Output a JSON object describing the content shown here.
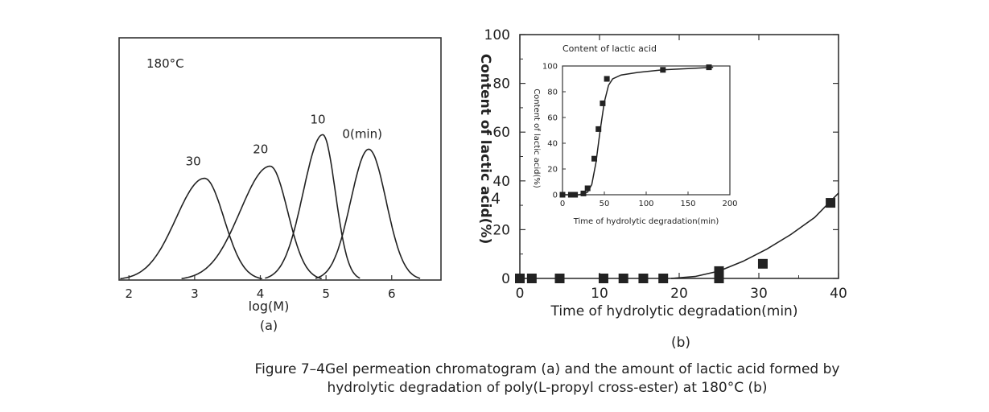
{
  "chart_data": [
    {
      "type": "line",
      "panel": "(a)",
      "annotation": "180°C",
      "xlabel": "log(M)",
      "ylabel": "",
      "xlim": [
        1.85,
        6.75
      ],
      "ylim": [
        0,
        1.0
      ],
      "x_ticks": [
        2,
        3,
        4,
        5,
        6
      ],
      "grid": false,
      "series": [
        {
          "name": "30",
          "peak_x": 3.15,
          "peak_y": 0.42,
          "left_width": 0.95,
          "right_width": 0.65
        },
        {
          "name": "20",
          "peak_x": 4.15,
          "peak_y": 0.47,
          "left_width": 1.0,
          "right_width": 0.58
        },
        {
          "name": "10",
          "peak_x": 4.95,
          "peak_y": 0.6,
          "left_width": 0.65,
          "right_width": 0.42
        },
        {
          "name": "0(min)",
          "peak_x": 5.65,
          "peak_y": 0.54,
          "left_width": 0.6,
          "right_width": 0.58
        }
      ]
    },
    {
      "type": "scatter",
      "panel": "(b)",
      "xlabel": "Time of hydrolytic degradation(min)",
      "ylabel": "Content of lactic acid(%)",
      "xlim": [
        0,
        40
      ],
      "ylim": [
        0,
        100
      ],
      "x_ticks": [
        0,
        10,
        20,
        30,
        40
      ],
      "y_ticks": [
        0,
        20,
        40,
        60,
        80,
        100
      ],
      "grid": false,
      "points": {
        "x": [
          0,
          1.5,
          5,
          10.5,
          13,
          15.5,
          18,
          25,
          25,
          30.5,
          39
        ],
        "y": [
          0,
          0,
          0,
          0,
          0,
          0,
          0,
          0,
          3,
          6,
          31
        ]
      },
      "fit_curve": {
        "x": [
          19,
          22,
          25,
          28,
          31,
          34,
          37,
          40
        ],
        "y": [
          0,
          0.8,
          3,
          7,
          12,
          18,
          25,
          35
        ]
      }
    },
    {
      "type": "scatter",
      "panel": "inset",
      "title": "Content of lactic acid",
      "xlabel": "Time of hydrolytic degradation(min)",
      "ylabel": "Content of lactic acid(%)",
      "xlim": [
        0,
        200
      ],
      "ylim": [
        0,
        100
      ],
      "x_ticks": [
        0,
        50,
        100,
        150,
        200
      ],
      "y_ticks": [
        0,
        20,
        40,
        60,
        80,
        100
      ],
      "grid": false,
      "points": {
        "x": [
          0,
          10,
          15,
          25,
          30,
          38,
          43,
          48,
          53,
          120,
          175
        ],
        "y": [
          0,
          0,
          0,
          1,
          5,
          28,
          51,
          71,
          90,
          97,
          99
        ]
      },
      "fit_curve": {
        "x": [
          0,
          20,
          30,
          35,
          40,
          45,
          50,
          55,
          60,
          70,
          90,
          120,
          150,
          180
        ],
        "y": [
          0,
          0,
          2,
          8,
          25,
          50,
          72,
          85,
          90,
          93,
          95,
          97,
          98,
          99
        ]
      }
    }
  ],
  "panel_b_label": "(b)",
  "stray_mark": "4",
  "caption": {
    "line1": "Figure 7–4Gel permeation chromatogram (a) and the amount of lactic acid formed by",
    "line2": "hydrolytic degradation of poly(L-propyl cross-ester) at 180°C (b)"
  }
}
